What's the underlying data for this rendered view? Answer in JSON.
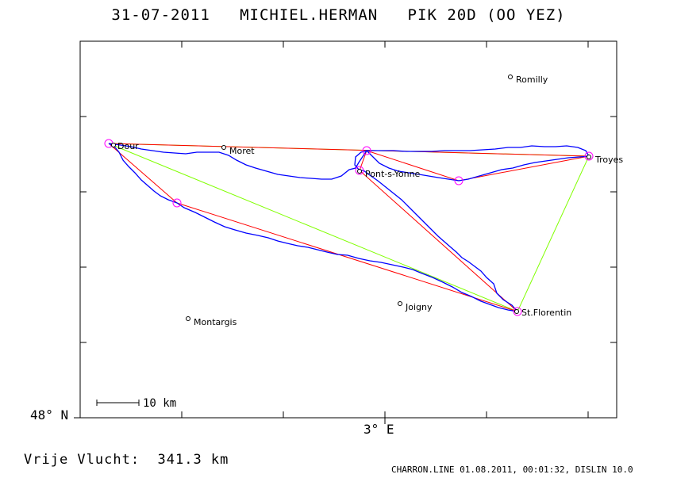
{
  "header": {
    "title": "31-07-2011   MICHIEL.HERMAN   PIK 20D (OO YEZ)"
  },
  "axes": {
    "lat_label": "48° N",
    "lon_label": "3° E"
  },
  "scale": {
    "label": "10 km"
  },
  "cities": [
    {
      "id": "romilly",
      "name": "Romilly"
    },
    {
      "id": "moret",
      "name": "Moret"
    },
    {
      "id": "dour",
      "name": "Dour"
    },
    {
      "id": "troyes",
      "name": "Troyes"
    },
    {
      "id": "pont",
      "name": "Pont-s-Yonne"
    },
    {
      "id": "joigny",
      "name": "Joigny"
    },
    {
      "id": "montargis",
      "name": "Montargis"
    },
    {
      "id": "stflorentin",
      "name": "St.Florentin"
    }
  ],
  "flight": {
    "distance_text": "Vrije Vlucht:  341.3 km"
  },
  "footer": {
    "text": "CHARRON.LINE 01.08.2011, 00:01:32, DISLIN 10.0"
  },
  "colors": {
    "track": "#0000ff",
    "route": "#ff0000",
    "triangle": "#80ff00",
    "turnpoint": "#ff00ff"
  }
}
